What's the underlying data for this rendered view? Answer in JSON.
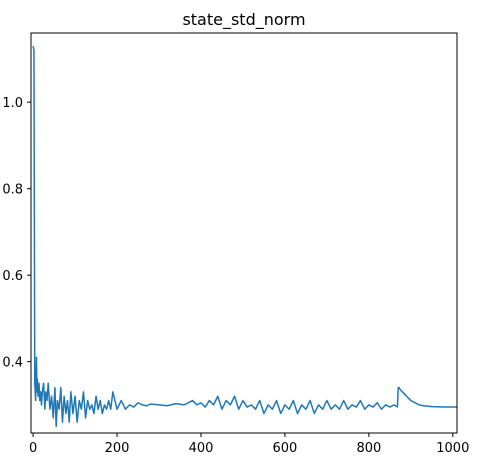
{
  "chart_data": {
    "type": "line",
    "title": "state_std_norm",
    "xlabel": "",
    "ylabel": "",
    "xlim": [
      -5,
      1010
    ],
    "ylim": [
      0.235,
      1.16
    ],
    "xticks": [
      0,
      200,
      400,
      600,
      800,
      1000
    ],
    "xtick_labels": [
      "0",
      "200",
      "400",
      "600",
      "800",
      "1000"
    ],
    "yticks": [
      0.4,
      0.6,
      0.8,
      1.0
    ],
    "ytick_labels": [
      "0.4",
      "0.6",
      "0.8",
      "1.0"
    ],
    "grid": false,
    "legend": "none",
    "series": [
      {
        "color": "#1f77b4",
        "x": [
          0,
          2,
          4,
          5,
          6,
          7,
          8,
          9,
          10,
          12,
          14,
          16,
          18,
          20,
          22,
          25,
          28,
          30,
          33,
          36,
          40,
          44,
          48,
          52,
          55,
          58,
          62,
          66,
          70,
          74,
          78,
          82,
          86,
          90,
          95,
          100,
          105,
          110,
          115,
          120,
          125,
          130,
          135,
          140,
          145,
          150,
          155,
          160,
          165,
          170,
          175,
          180,
          185,
          190,
          200,
          210,
          220,
          230,
          240,
          250,
          260,
          270,
          280,
          300,
          320,
          340,
          360,
          380,
          390,
          400,
          410,
          420,
          430,
          440,
          450,
          460,
          470,
          480,
          490,
          500,
          510,
          520,
          530,
          540,
          550,
          560,
          570,
          580,
          590,
          600,
          610,
          620,
          630,
          640,
          650,
          660,
          670,
          680,
          690,
          700,
          710,
          720,
          730,
          740,
          750,
          760,
          770,
          780,
          790,
          800,
          810,
          820,
          830,
          840,
          850,
          860,
          868,
          870,
          872,
          875,
          880,
          885,
          890,
          900,
          910,
          920,
          930,
          950,
          980,
          1010
        ],
        "y": [
          1.13,
          1.12,
          0.35,
          0.33,
          0.31,
          0.35,
          0.41,
          0.33,
          0.36,
          0.32,
          0.35,
          0.31,
          0.33,
          0.3,
          0.33,
          0.35,
          0.29,
          0.33,
          0.31,
          0.35,
          0.29,
          0.32,
          0.27,
          0.34,
          0.25,
          0.31,
          0.29,
          0.34,
          0.26,
          0.32,
          0.28,
          0.31,
          0.26,
          0.33,
          0.28,
          0.32,
          0.26,
          0.31,
          0.29,
          0.33,
          0.27,
          0.31,
          0.29,
          0.3,
          0.28,
          0.32,
          0.29,
          0.31,
          0.28,
          0.3,
          0.29,
          0.31,
          0.29,
          0.33,
          0.29,
          0.31,
          0.29,
          0.3,
          0.295,
          0.305,
          0.3,
          0.298,
          0.302,
          0.3,
          0.298,
          0.303,
          0.3,
          0.31,
          0.3,
          0.305,
          0.295,
          0.31,
          0.3,
          0.32,
          0.29,
          0.31,
          0.3,
          0.32,
          0.29,
          0.31,
          0.295,
          0.3,
          0.29,
          0.31,
          0.28,
          0.3,
          0.29,
          0.31,
          0.28,
          0.3,
          0.29,
          0.31,
          0.28,
          0.3,
          0.29,
          0.31,
          0.28,
          0.3,
          0.29,
          0.31,
          0.29,
          0.3,
          0.29,
          0.31,
          0.29,
          0.3,
          0.295,
          0.31,
          0.29,
          0.3,
          0.295,
          0.305,
          0.29,
          0.3,
          0.295,
          0.3,
          0.295,
          0.34,
          0.34,
          0.335,
          0.33,
          0.325,
          0.32,
          0.31,
          0.305,
          0.3,
          0.298,
          0.296,
          0.295,
          0.295
        ]
      }
    ]
  }
}
